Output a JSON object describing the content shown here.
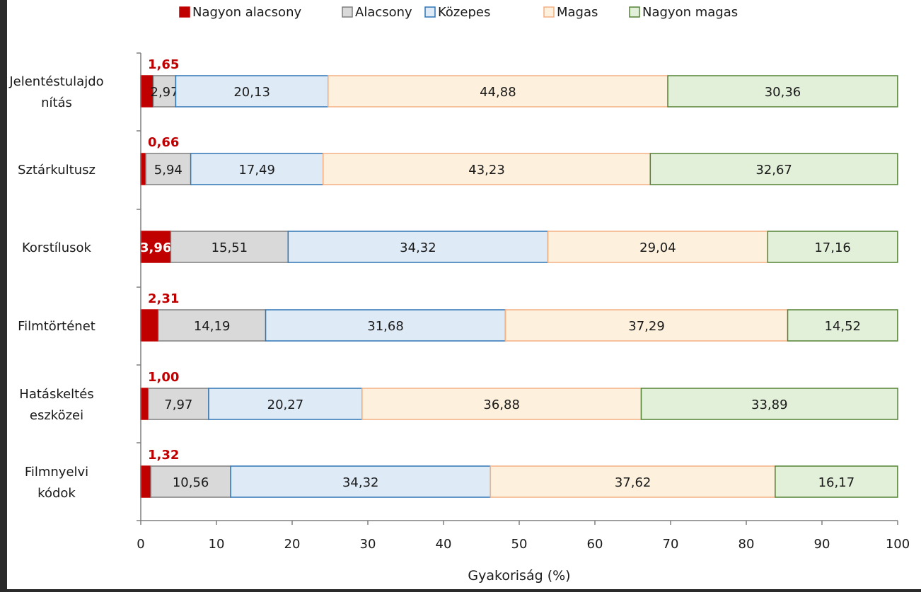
{
  "chart_data": {
    "type": "bar",
    "orientation": "horizontal",
    "stacked": true,
    "title": "",
    "xlabel": "Gyakoriság (%)",
    "ylabel": "",
    "xlim": [
      0,
      100
    ],
    "x_ticks": [
      0,
      10,
      20,
      30,
      40,
      50,
      60,
      70,
      80,
      90,
      100
    ],
    "grid": false,
    "legend_position": "top",
    "categories": [
      [
        "Jelentéstulajdo",
        "nítás"
      ],
      [
        "Sztárkultusz"
      ],
      [
        "Korstílusok"
      ],
      [
        "Filmtörténet"
      ],
      [
        "Hatáskeltés",
        "eszközei"
      ],
      [
        "Filmnyelvi",
        "kódok"
      ]
    ],
    "series": [
      {
        "name": "Nagyon alacsony",
        "fill": "#c00000",
        "stroke": "#c00000",
        "values": [
          1.65,
          0.66,
          3.96,
          2.31,
          1.0,
          1.32
        ],
        "labels": [
          "1,65",
          "0,66",
          "3,96",
          "2,31",
          "1,00",
          "1,32"
        ]
      },
      {
        "name": "Alacsony",
        "fill": "#d9d9d9",
        "stroke": "#7f7f7f",
        "values": [
          2.97,
          5.94,
          15.51,
          14.19,
          7.97,
          10.56
        ],
        "labels": [
          "2,97",
          "5,94",
          "15,51",
          "14,19",
          "7,97",
          "10,56"
        ]
      },
      {
        "name": "Közepes",
        "fill": "#deebf7",
        "stroke": "#2e75b6",
        "values": [
          20.13,
          17.49,
          34.32,
          31.68,
          20.27,
          34.32
        ],
        "labels": [
          "20,13",
          "17,49",
          "34,32",
          "31,68",
          "20,27",
          "34,32"
        ]
      },
      {
        "name": "Magas",
        "fill": "#fdf0dc",
        "stroke": "#f4b183",
        "values": [
          44.88,
          43.23,
          29.04,
          37.29,
          36.88,
          37.62
        ],
        "labels": [
          "44,88",
          "43,23",
          "29,04",
          "37,29",
          "36,88",
          "37,62"
        ]
      },
      {
        "name": "Nagyon magas",
        "fill": "#e2f0d9",
        "stroke": "#548235",
        "values": [
          30.36,
          32.67,
          17.16,
          14.52,
          33.89,
          16.17
        ],
        "labels": [
          "30,36",
          "32,67",
          "17,16",
          "14,52",
          "33,89",
          "16,17"
        ]
      }
    ],
    "colors": {
      "small_label": "#c00000",
      "label_text": "#1a1a1a",
      "axis": "#7f7f7f"
    }
  }
}
